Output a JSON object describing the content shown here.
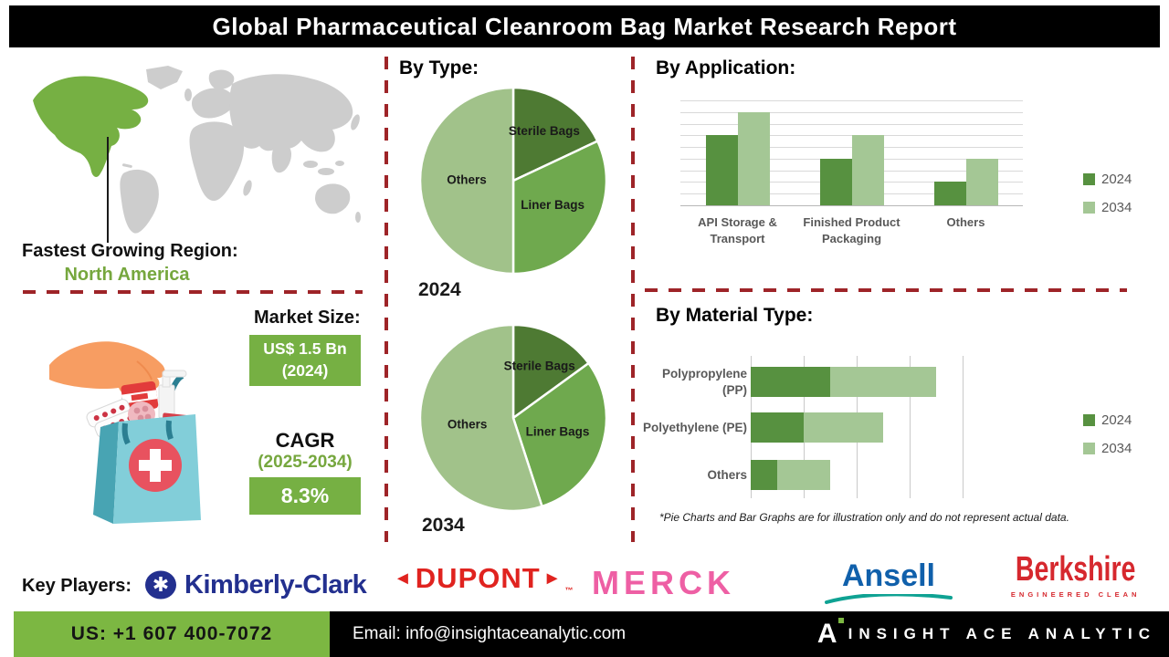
{
  "title": "Global Pharmaceutical Cleanroom Bag Market Research Report",
  "region": {
    "heading": "Fastest Growing Region:",
    "value": "North America"
  },
  "market": {
    "heading": "Market Size:",
    "size_value": "US$ 1.5 Bn",
    "size_year": "(2024)",
    "cagr_label": "CAGR",
    "cagr_period": "(2025-2034)",
    "cagr_value": "8.3%"
  },
  "chart_data": [
    {
      "type": "pie",
      "section": "By Type:",
      "year_label": "2024",
      "labels": [
        "Sterile Bags",
        "Liner Bags",
        "Others"
      ],
      "values": [
        18,
        32,
        50
      ],
      "colors": [
        "#4e7a33",
        "#6fa94e",
        "#a1c28a"
      ],
      "note": "illustrative only"
    },
    {
      "type": "pie",
      "section": "By Type:",
      "year_label": "2034",
      "labels": [
        "Sterile Bags",
        "Liner Bags",
        "Others"
      ],
      "values": [
        15,
        30,
        55
      ],
      "colors": [
        "#4e7a33",
        "#6fa94e",
        "#a1c28a"
      ],
      "note": "illustrative only"
    },
    {
      "type": "bar",
      "orientation": "vertical-grouped",
      "section": "By Application:",
      "categories": [
        "API Storage & Transport",
        "Finished Product Packaging",
        "Others"
      ],
      "series": [
        {
          "name": "2024",
          "color": "#579140",
          "values": [
            6,
            4,
            2
          ]
        },
        {
          "name": "2034",
          "color": "#a4c795",
          "values": [
            8,
            6,
            4
          ]
        }
      ],
      "ylim": [
        0,
        9
      ],
      "grid": true,
      "legend_position": "right",
      "note": "illustrative only"
    },
    {
      "type": "bar",
      "orientation": "horizontal-stacked",
      "section": "By Material Type:",
      "categories": [
        "Polypropylene (PP)",
        "Polyethylene (PE)",
        "Others"
      ],
      "series": [
        {
          "name": "2024",
          "color": "#579140",
          "values": [
            1.5,
            1.0,
            0.5
          ]
        },
        {
          "name": "2034",
          "color": "#a4c795",
          "values": [
            2.0,
            1.5,
            1.0
          ]
        }
      ],
      "xlim": [
        0,
        4
      ],
      "grid": true,
      "legend_position": "right",
      "note": "illustrative only"
    }
  ],
  "footnote": "*Pie Charts and Bar Graphs are for illustration only and do not represent actual data.",
  "key_players": {
    "heading": "Key Players:",
    "players": [
      {
        "name": "Kimberly-Clark",
        "color": "#23308f"
      },
      {
        "name": "DUPONT",
        "tm": "™",
        "color": "#e0231f"
      },
      {
        "name": "MERCK",
        "color": "#ee5fa4"
      },
      {
        "name": "Ansell",
        "color": "#1060ab"
      },
      {
        "name": "Berkshire",
        "tagline": "ENGINEERED CLEAN",
        "color": "#d6282e"
      }
    ]
  },
  "footer": {
    "phone": "US: +1 607 400-7072",
    "email": "Email: info@insightaceanalytic.com",
    "brand": "INSIGHT ACE ANALYTIC"
  },
  "colors": {
    "title_bg": "#000000",
    "dashed_divider": "#9e2428",
    "highlight_green": "#76b043",
    "text_green": "#76a73e",
    "footer_green": "#7cb742",
    "map_land": "#cdcdcd",
    "map_highlight": "#76b043",
    "bar_2024": "#579140",
    "bar_2034": "#a4c795"
  }
}
